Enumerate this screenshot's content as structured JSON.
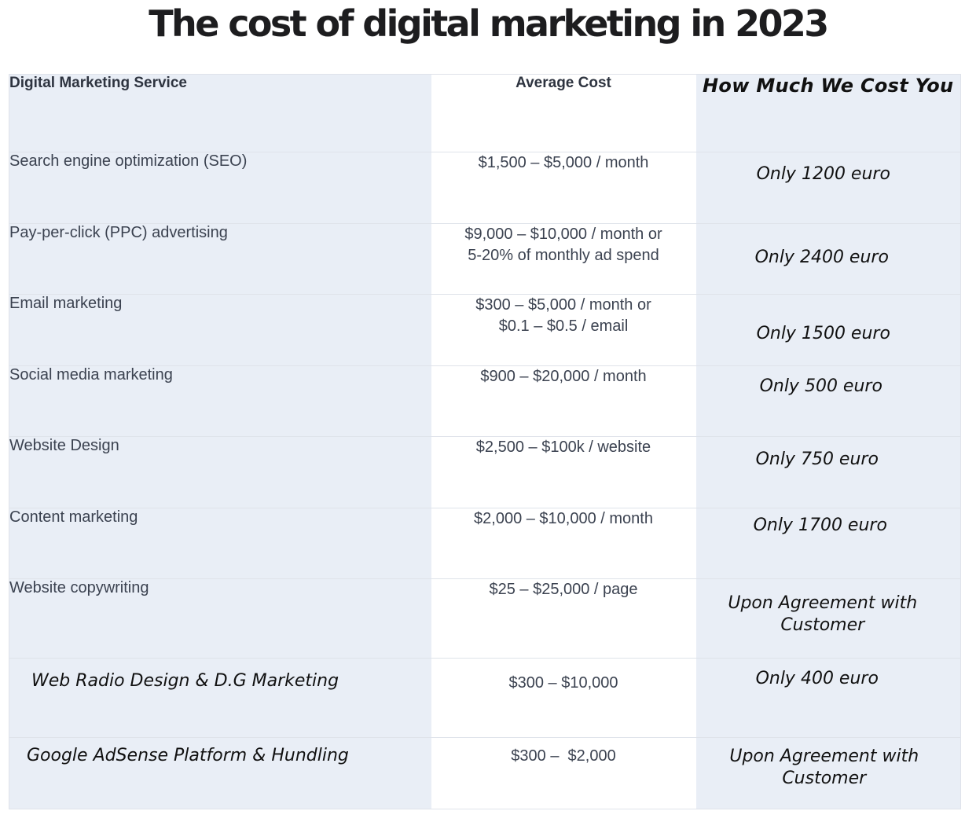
{
  "title": "The cost of digital marketing in 2023",
  "table": {
    "headers": {
      "service": "Digital Marketing Service",
      "average": "Average Cost",
      "ours": "How Much We Cost You"
    },
    "rows": [
      {
        "service": "Search engine optimization (SEO)",
        "average": [
          "$1,500 – $5,000 / month"
        ],
        "ours": [
          "Only 1200 euro"
        ]
      },
      {
        "service": "Pay-per-click (PPC) advertising",
        "average": [
          "$9,000 – $10,000 / month or",
          "5-20% of monthly ad spend"
        ],
        "ours": [
          "Only 2400 euro"
        ]
      },
      {
        "service": "Email marketing",
        "average": [
          "$300 – $5,000 / month or",
          "$0.1 – $0.5 / email"
        ],
        "ours": [
          "Only 1500 euro"
        ]
      },
      {
        "service": "Social media marketing",
        "average": [
          "$900 – $20,000 / month"
        ],
        "ours": [
          "Only 500 euro"
        ]
      },
      {
        "service": "Website Design",
        "average": [
          "$2,500 – $100k / website"
        ],
        "ours": [
          "Only 750 euro"
        ]
      },
      {
        "service": "Content marketing",
        "average": [
          "$2,000 – $10,000 / month"
        ],
        "ours": [
          "Only 1700 euro"
        ]
      },
      {
        "service": "Website copywriting",
        "average": [
          "$25 – $25,000 / page"
        ],
        "ours": [
          "Upon Agreement with",
          "Customer"
        ]
      },
      {
        "service": "Web Radio Design & D.G Marketing",
        "average": [
          "$300 – $10,000"
        ],
        "ours": [
          "Only 400 euro"
        ]
      },
      {
        "service": "Google AdSense Platform & Hundling",
        "average": [
          "$300 –  $2,000"
        ],
        "ours": [
          "Upon Agreement with",
          "Customer"
        ]
      }
    ]
  }
}
